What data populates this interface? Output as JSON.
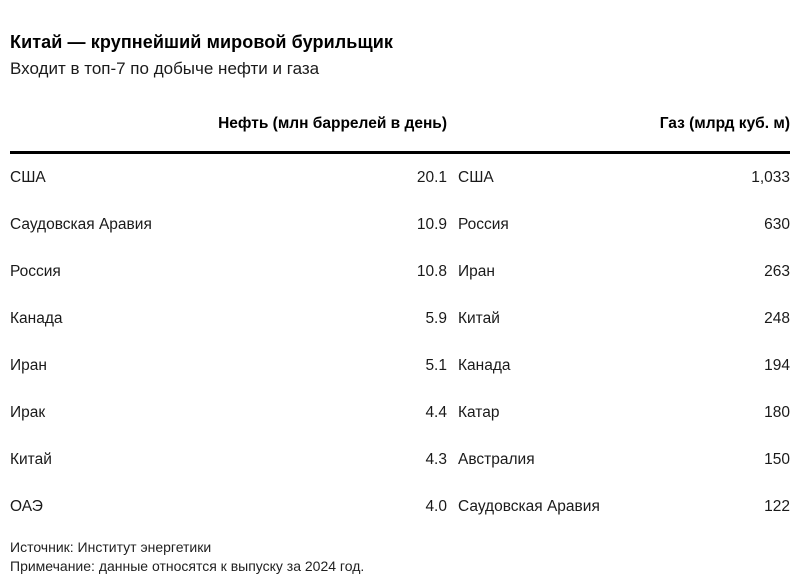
{
  "header": {
    "title": "Китай — крупнейший мировой бурильщик",
    "subtitle": "Входит в топ-7 по добыче нефти и газа"
  },
  "chart_data": {
    "type": "table",
    "title": "Китай — крупнейший мировой бурильщик",
    "subtitle": "Входит в топ-7 по добыче нефти и газа",
    "layout": "two side-by-side ranked tables, values right-aligned, single thick black rule under headers",
    "tables": [
      {
        "header": "Нефть (млн баррелей в день)",
        "unit": "млн баррелей в день",
        "rows": [
          [
            "США",
            "20.1"
          ],
          [
            "Саудовская Аравия",
            "10.9"
          ],
          [
            "Россия",
            "10.8"
          ],
          [
            "Канада",
            "5.9"
          ],
          [
            "Иран",
            "5.1"
          ],
          [
            "Ирак",
            "4.4"
          ],
          [
            "Китай",
            "4.3"
          ],
          [
            "ОАЭ",
            "4.0"
          ]
        ]
      },
      {
        "header": "Газ (млрд куб. м)",
        "unit": "млрд куб. м",
        "rows": [
          [
            "США",
            "1,033"
          ],
          [
            "Россия",
            "630"
          ],
          [
            "Иран",
            "263"
          ],
          [
            "Китай",
            "248"
          ],
          [
            "Канада",
            "194"
          ],
          [
            "Катар",
            "180"
          ],
          [
            "Австралия",
            "150"
          ],
          [
            "Саудовская Аравия",
            "122"
          ]
        ]
      }
    ]
  },
  "footer": {
    "source": "Источник: Институт энергетики",
    "note": "Примечание: данные относятся к выпуску за 2024 год."
  },
  "colors": {
    "background": "#ffffff",
    "text": "#1a1a1a",
    "heading": "#000000",
    "rule": "#000000"
  }
}
